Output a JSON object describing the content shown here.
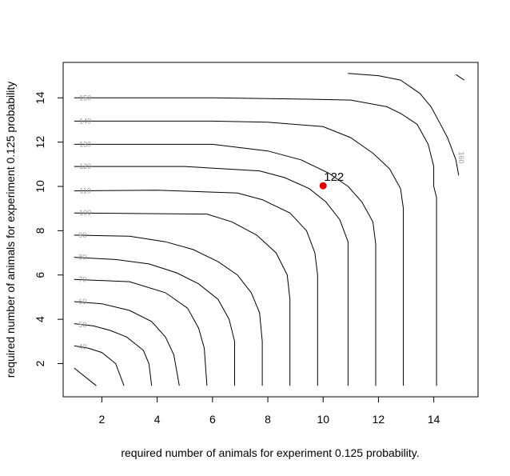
{
  "chart_data": {
    "type": "contour",
    "title": "",
    "xlabel": "required number of animals for experiment 0.125 probability.",
    "ylabel": "required number of animals for experiment 0.125 probability",
    "xlim": [
      0.6,
      15.6
    ],
    "ylim": [
      0.5,
      15.6
    ],
    "x_ticks": [
      2,
      4,
      6,
      8,
      10,
      12,
      14
    ],
    "y_ticks": [
      2,
      4,
      6,
      8,
      10,
      12,
      14
    ],
    "contours": [
      {
        "level": "40",
        "points": [
          [
            1.0,
            1.8
          ],
          [
            1.8,
            1.0
          ]
        ]
      },
      {
        "level": "40",
        "points": [
          [
            1.0,
            2.8
          ],
          [
            1.5,
            2.7
          ],
          [
            2.0,
            2.5
          ],
          [
            2.5,
            2.0
          ],
          [
            2.8,
            1.0
          ]
        ]
      },
      {
        "level": "50",
        "points": [
          [
            1.0,
            3.8
          ],
          [
            1.7,
            3.7
          ],
          [
            2.3,
            3.5
          ],
          [
            2.9,
            3.2
          ],
          [
            3.5,
            2.6
          ],
          [
            3.7,
            2.0
          ],
          [
            3.8,
            1.0
          ]
        ]
      },
      {
        "level": "60",
        "points": [
          [
            1.0,
            4.8
          ],
          [
            2.0,
            4.7
          ],
          [
            3.0,
            4.4
          ],
          [
            3.8,
            3.9
          ],
          [
            4.3,
            3.2
          ],
          [
            4.6,
            2.4
          ],
          [
            4.7,
            1.7
          ],
          [
            4.8,
            1.0
          ]
        ]
      },
      {
        "level": "70",
        "points": [
          [
            1.0,
            5.8
          ],
          [
            3.0,
            5.7
          ],
          [
            4.3,
            5.2
          ],
          [
            5.1,
            4.5
          ],
          [
            5.5,
            3.6
          ],
          [
            5.7,
            2.7
          ],
          [
            5.8,
            1.0
          ]
        ]
      },
      {
        "level": "80",
        "points": [
          [
            1.0,
            6.8
          ],
          [
            2.5,
            6.7
          ],
          [
            3.7,
            6.5
          ],
          [
            4.7,
            6.1
          ],
          [
            5.5,
            5.6
          ],
          [
            6.2,
            4.9
          ],
          [
            6.6,
            4.0
          ],
          [
            6.8,
            3.0
          ],
          [
            6.8,
            1.0
          ]
        ]
      },
      {
        "level": "90",
        "points": [
          [
            1.0,
            7.8
          ],
          [
            3.0,
            7.75
          ],
          [
            4.3,
            7.5
          ],
          [
            5.3,
            7.15
          ],
          [
            6.2,
            6.6
          ],
          [
            6.9,
            6.0
          ],
          [
            7.4,
            5.2
          ],
          [
            7.7,
            4.3
          ],
          [
            7.8,
            3.0
          ],
          [
            7.8,
            1.0
          ]
        ]
      },
      {
        "level": "100",
        "points": [
          [
            1.0,
            8.8
          ],
          [
            5.8,
            8.75
          ],
          [
            6.7,
            8.4
          ],
          [
            7.6,
            7.8
          ],
          [
            8.3,
            7.0
          ],
          [
            8.7,
            6.0
          ],
          [
            8.8,
            4.9
          ],
          [
            8.8,
            1.0
          ]
        ]
      },
      {
        "level": "110",
        "points": [
          [
            1.0,
            9.8
          ],
          [
            4.0,
            9.83
          ],
          [
            6.9,
            9.7
          ],
          [
            7.8,
            9.4
          ],
          [
            8.8,
            8.8
          ],
          [
            9.4,
            8.0
          ],
          [
            9.7,
            7.0
          ],
          [
            9.8,
            6.0
          ],
          [
            9.8,
            1.0
          ]
        ]
      },
      {
        "level": "120",
        "points": [
          [
            1.0,
            10.9
          ],
          [
            5.0,
            10.9
          ],
          [
            7.7,
            10.7
          ],
          [
            8.6,
            10.4
          ],
          [
            9.5,
            9.9
          ],
          [
            10.1,
            9.3
          ],
          [
            10.6,
            8.5
          ],
          [
            10.9,
            7.5
          ],
          [
            10.9,
            6.5
          ],
          [
            10.9,
            1.0
          ]
        ]
      },
      {
        "level": "130",
        "points": [
          [
            1.0,
            11.9
          ],
          [
            6.0,
            11.9
          ],
          [
            8.0,
            11.6
          ],
          [
            9.2,
            11.2
          ],
          [
            10.2,
            10.6
          ],
          [
            10.9,
            10.0
          ],
          [
            11.4,
            9.3
          ],
          [
            11.8,
            8.4
          ],
          [
            11.9,
            7.4
          ],
          [
            11.9,
            1.0
          ]
        ]
      },
      {
        "level": "140",
        "points": [
          [
            1.0,
            12.95
          ],
          [
            6.0,
            12.95
          ],
          [
            8.0,
            12.9
          ],
          [
            10.0,
            12.7
          ],
          [
            11.0,
            12.2
          ],
          [
            11.8,
            11.5
          ],
          [
            12.4,
            10.8
          ],
          [
            12.8,
            9.9
          ],
          [
            12.9,
            9.0
          ],
          [
            12.9,
            1.0
          ]
        ]
      },
      {
        "level": "150",
        "points": [
          [
            1.0,
            14.0
          ],
          [
            6.0,
            14.0
          ],
          [
            9.0,
            13.95
          ],
          [
            11.0,
            13.9
          ],
          [
            12.3,
            13.6
          ],
          [
            12.8,
            13.3
          ],
          [
            13.4,
            12.8
          ],
          [
            13.8,
            11.9
          ],
          [
            14.0,
            10.9
          ],
          [
            14.0,
            10.0
          ],
          [
            14.1,
            9.5
          ],
          [
            14.1,
            1.0
          ]
        ]
      },
      {
        "level": "160",
        "points": [
          [
            10.9,
            15.1
          ],
          [
            12.0,
            15.0
          ],
          [
            12.8,
            14.8
          ],
          [
            13.5,
            14.2
          ],
          [
            13.9,
            13.6
          ],
          [
            14.2,
            12.9
          ],
          [
            14.5,
            12.2
          ],
          [
            14.8,
            11.2
          ],
          [
            14.9,
            10.5
          ]
        ]
      },
      {
        "level": "",
        "points": [
          [
            14.8,
            15.05
          ],
          [
            15.1,
            14.8
          ]
        ]
      }
    ],
    "contour_labels": [
      {
        "text": "150",
        "x": 1.4,
        "y": 14.0,
        "rotate": 0
      },
      {
        "text": "140",
        "x": 1.4,
        "y": 12.95,
        "rotate": 0
      },
      {
        "text": "130",
        "x": 1.4,
        "y": 11.9,
        "rotate": 0
      },
      {
        "text": "120",
        "x": 1.4,
        "y": 10.9,
        "rotate": 0
      },
      {
        "text": "110",
        "x": 1.4,
        "y": 9.8,
        "rotate": 0
      },
      {
        "text": "100",
        "x": 1.4,
        "y": 8.8,
        "rotate": 0
      },
      {
        "text": "90",
        "x": 1.3,
        "y": 7.8,
        "rotate": 0
      },
      {
        "text": "80",
        "x": 1.3,
        "y": 6.8,
        "rotate": 0
      },
      {
        "text": "70",
        "x": 1.3,
        "y": 5.8,
        "rotate": 0
      },
      {
        "text": "60",
        "x": 1.3,
        "y": 4.8,
        "rotate": 0
      },
      {
        "text": "50",
        "x": 1.3,
        "y": 3.75,
        "rotate": 0
      },
      {
        "text": "40",
        "x": 1.3,
        "y": 2.75,
        "rotate": 0
      },
      {
        "text": "160",
        "x": 15.0,
        "y": 11.3,
        "rotate": 90
      }
    ],
    "point": {
      "x": 10.0,
      "y": 10.03,
      "label": "122",
      "color": "#e00000"
    },
    "colors": {
      "contour": "#000000",
      "contour_label": "#9a9a9a",
      "axis": "#000000"
    }
  }
}
